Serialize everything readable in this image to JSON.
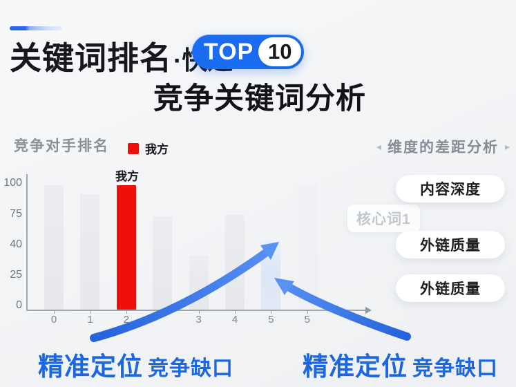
{
  "header": {
    "title_main": "关键词排名",
    "title_sub": "·快速",
    "badge_text": "TOP",
    "badge_number": "10",
    "subtitle": "竞争关键词分析"
  },
  "chart": {
    "label": "竞争对手排名",
    "legend": {
      "swatch_color": "#ee1009",
      "label": "我方"
    },
    "our_bar_label": "我方",
    "ghost_label": "核心词1"
  },
  "chart_data": {
    "type": "bar",
    "title": "竞争对手排名",
    "categories": [
      "0",
      "1",
      "2",
      "",
      "3",
      "4",
      "5",
      "5"
    ],
    "values": [
      99,
      92,
      99,
      74,
      43,
      75,
      55,
      100
    ],
    "bar_roles": [
      "competitor",
      "competitor",
      "ours",
      "competitor",
      "competitor",
      "competitor",
      "gap-highlight",
      "ghost"
    ],
    "series": [
      {
        "name": "我方",
        "color": "#ee1009",
        "bar_index": 2
      }
    ],
    "y_tick_labels": [
      "100",
      "75",
      "40",
      "25",
      "0"
    ],
    "ylim": [
      0,
      100
    ],
    "grid": false,
    "legend_position": "top",
    "annotations": [
      "我方",
      "核心词1",
      "精准定位竞争缺口"
    ]
  },
  "panel": {
    "left_arrow": "◂",
    "right_arrow": "▸",
    "header": "维度的差距分析",
    "items": [
      "内容深度",
      "外链质量",
      "外链质量"
    ]
  },
  "callouts": [
    {
      "strong": "精准定位",
      "normal": "竞争缺口"
    },
    {
      "strong": "精准定位",
      "normal": "竞争缺口"
    }
  ],
  "colors": {
    "badge_blue": "#1a6df0",
    "accent_blue": "#2b66e8",
    "our_red": "#ee1009",
    "callout_blue": "#1a67e0",
    "arrow_blue_dark": "#2563dc",
    "arrow_blue_light": "#5a92f4",
    "highlight_bar": "#dde6f8",
    "competitor_bar": "#e9ebee",
    "axis_gray": "#a3a8b0",
    "muted_text": "#8a9097",
    "background": "#f2f4f6"
  }
}
